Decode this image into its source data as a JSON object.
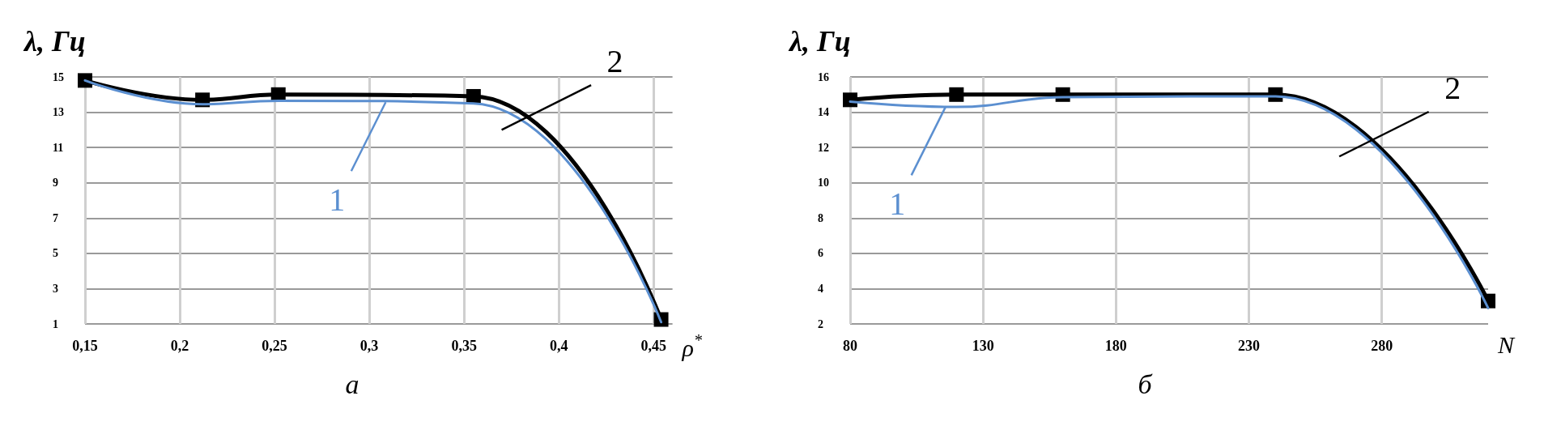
{
  "chart_data": [
    {
      "type": "line",
      "title": "а",
      "xlabel": "ρ$^{*}$",
      "ylabel": "λ, Гц",
      "x": [
        0.15,
        0.212,
        0.252,
        0.355,
        0.454
      ],
      "series": [
        {
          "name": "1",
          "color": "#5b8fd0",
          "values": [
            14.8,
            13.45,
            13.65,
            13.5,
            1.1
          ],
          "marker": "none"
        },
        {
          "name": "2",
          "color": "#000000",
          "values": [
            14.8,
            13.7,
            14.0,
            13.9,
            1.25
          ],
          "marker": "square"
        }
      ],
      "xlim": [
        0.15,
        0.46
      ],
      "xticks": [
        {
          "value": 0.15,
          "label": "0,15"
        },
        {
          "value": 0.2,
          "label": "0,2"
        },
        {
          "value": 0.25,
          "label": "0,25"
        },
        {
          "value": 0.3,
          "label": "0,3"
        },
        {
          "value": 0.35,
          "label": "0,35"
        },
        {
          "value": 0.4,
          "label": "0,4"
        },
        {
          "value": 0.45,
          "label": "0,45"
        }
      ],
      "ylim": [
        1,
        15
      ],
      "yticks": [
        1,
        3,
        5,
        7,
        9,
        11,
        13,
        15
      ],
      "grid": true
    },
    {
      "type": "line",
      "title": "б",
      "xlabel": "N",
      "ylabel": "λ, Гц",
      "x": [
        80,
        120,
        160,
        240,
        320
      ],
      "series": [
        {
          "name": "1",
          "color": "#5b8fd0",
          "values": [
            14.6,
            14.3,
            14.85,
            14.9,
            2.9
          ],
          "marker": "none"
        },
        {
          "name": "2",
          "color": "#000000",
          "values": [
            14.7,
            15.0,
            15.0,
            15.0,
            3.3
          ],
          "marker": "square"
        }
      ],
      "xlim": [
        80,
        320
      ],
      "xticks": [
        80,
        130,
        180,
        230,
        280
      ],
      "ylim": [
        2,
        16
      ],
      "yticks": [
        2,
        4,
        6,
        8,
        10,
        12,
        14,
        16
      ],
      "grid": true
    }
  ]
}
